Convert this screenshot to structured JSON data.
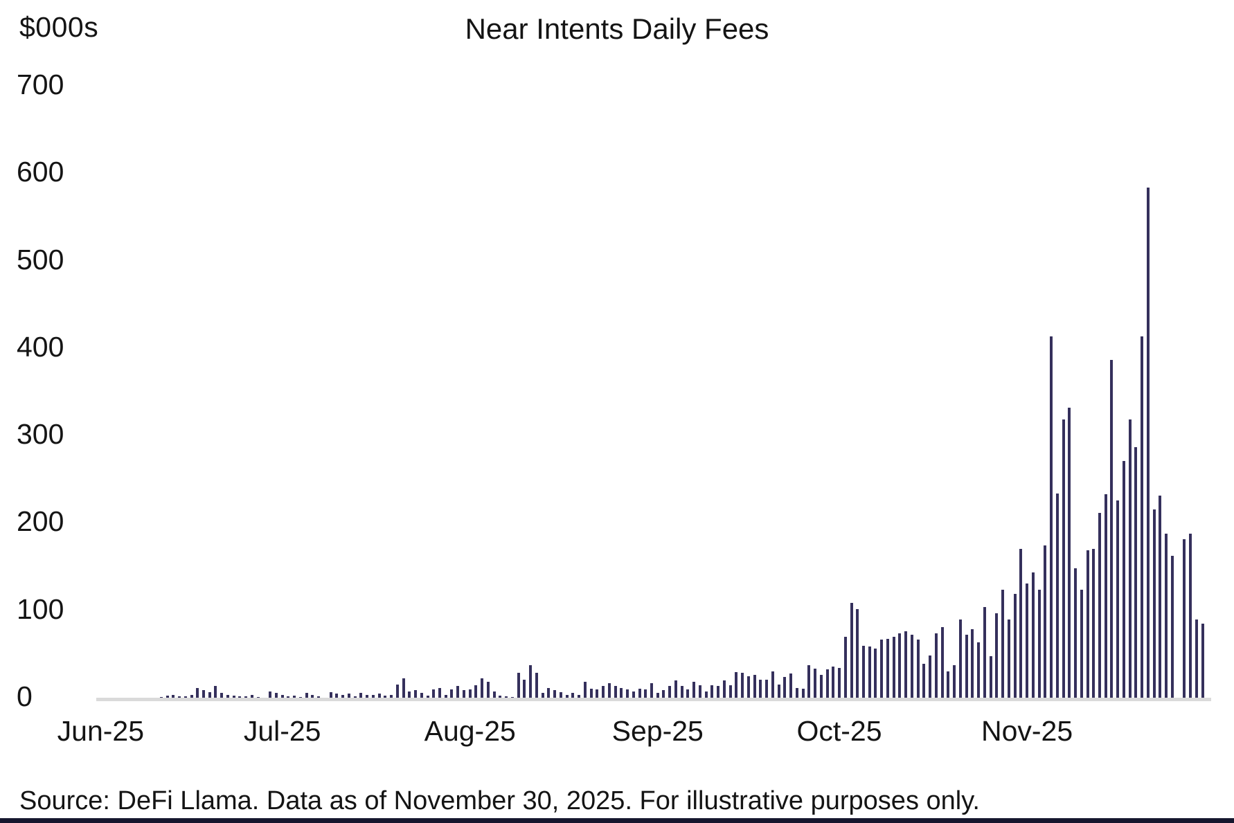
{
  "chart_data": {
    "type": "bar",
    "title": "Near Intents Daily Fees",
    "unit_label": "$000s",
    "source_note": "Source: DeFi Llama. Data as of November 30, 2025. For illustrative purposes only.",
    "bar_color": "#35305c",
    "axis_line_color": "#dadada",
    "bottom_strip_color": "#15162e",
    "ylim": [
      0,
      700
    ],
    "yticks": [
      0,
      100,
      200,
      300,
      400,
      500,
      600,
      700
    ],
    "grid": "off",
    "legend": "none",
    "x_start": "Jun 1 2025",
    "x_end": "Nov 30 2025",
    "month_ticks": [
      {
        "label": "Jun-25",
        "day_index": 0
      },
      {
        "label": "Jul-25",
        "day_index": 30
      },
      {
        "label": "Aug-25",
        "day_index": 61
      },
      {
        "label": "Sep-25",
        "day_index": 92
      },
      {
        "label": "Oct-25",
        "day_index": 122
      },
      {
        "label": "Nov-25",
        "day_index": 153
      }
    ],
    "values": [
      0,
      0,
      0,
      0,
      0,
      0,
      0,
      0,
      0,
      0,
      2,
      4,
      5,
      3,
      3,
      5,
      13,
      10,
      8,
      15,
      7,
      5,
      4,
      3,
      3,
      5,
      2,
      1,
      9,
      7,
      5,
      3,
      4,
      2,
      7,
      5,
      3,
      1,
      8,
      6,
      5,
      6,
      3,
      7,
      5,
      5,
      6,
      4,
      5,
      17,
      24,
      9,
      10,
      7,
      4,
      11,
      13,
      5,
      11,
      15,
      10,
      11,
      16,
      24,
      20,
      9,
      4,
      3,
      2,
      30,
      22,
      39,
      30,
      7,
      13,
      10,
      8,
      5,
      7,
      5,
      20,
      12,
      11,
      15,
      18,
      15,
      13,
      11,
      9,
      12,
      11,
      18,
      7,
      10,
      15,
      21,
      15,
      11,
      20,
      16,
      9,
      16,
      15,
      21,
      16,
      31,
      30,
      26,
      28,
      22,
      22,
      32,
      17,
      25,
      29,
      13,
      12,
      39,
      35,
      28,
      34,
      37,
      36,
      71,
      110,
      103,
      61,
      60,
      58,
      68,
      69,
      71,
      75,
      78,
      74,
      68,
      40,
      50,
      75,
      82,
      32,
      39,
      91,
      74,
      80,
      65,
      105,
      49,
      98,
      125,
      91,
      120,
      172,
      132,
      145,
      125,
      176,
      415,
      235,
      320,
      333,
      150,
      125,
      170,
      172,
      213,
      234,
      388,
      227,
      272,
      320,
      288,
      415,
      585,
      217,
      233,
      189,
      164,
      0,
      183,
      189,
      91,
      86
    ]
  }
}
